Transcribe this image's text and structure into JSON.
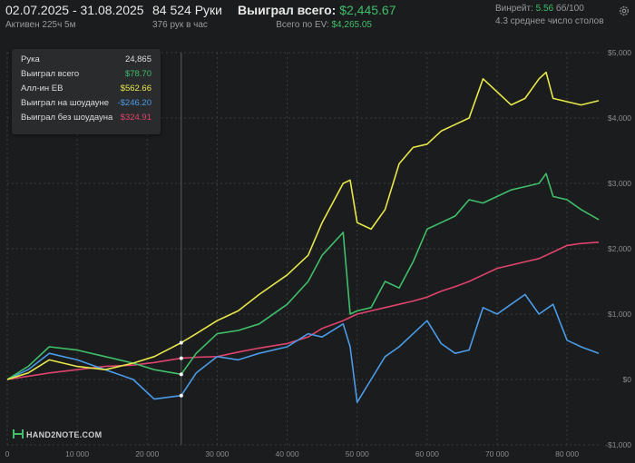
{
  "header": {
    "date_range": "02.07.2025 - 31.08.2025",
    "active_label": "Активен 225ч 5м",
    "hands": "84 524 Руки",
    "hands_per_hour": "376 рук в час",
    "won_total_label": "Выиграл всего:",
    "won_total_value": "$2,445.67",
    "ev_label": "Всего по EV:",
    "ev_value": "$4,265.05",
    "winrate_label": "Винрейт:",
    "winrate_value": "5.56",
    "winrate_suffix": "бб/100",
    "avg_tables": "4.3 среднее число столов"
  },
  "tooltip": {
    "rows": [
      {
        "label": "Рука",
        "value": "24,865",
        "color": "#dcdcdc"
      },
      {
        "label": "Выиграл всего",
        "value": "$78.70",
        "color": "#3fbf6a"
      },
      {
        "label": "Алл-ин EB",
        "value": "$562.66",
        "color": "#e6e84a"
      },
      {
        "label": "Выиграл на шоудауне",
        "value": "-$246.20",
        "color": "#4a9be8"
      },
      {
        "label": "Выиграл без шоудауна",
        "value": "$324.91",
        "color": "#e0436e"
      }
    ]
  },
  "logo": "HAND2NOTE.COM",
  "icons": {
    "settings": "gear-icon"
  },
  "colors": {
    "won_total": "#3fbf6a",
    "allin_ev": "#e6e84a",
    "showdown": "#4a9be8",
    "non_showdown": "#e0436e",
    "grid": "#3a3b3d",
    "background": "#1b1c1d"
  },
  "chart_data": {
    "type": "line",
    "x_ticks": [
      0,
      10000,
      20000,
      30000,
      40000,
      50000,
      60000,
      70000,
      80000
    ],
    "x_tick_labels": [
      "0",
      "10 000",
      "20 000",
      "30 000",
      "40 000",
      "50 000",
      "60 000",
      "70 000",
      "80 000"
    ],
    "y_ticks": [
      -1000,
      0,
      1000,
      2000,
      3000,
      4000,
      5000
    ],
    "y_tick_labels": [
      "-$1,000",
      "$0",
      "$1,000",
      "$2,000",
      "$3,000",
      "$4,000",
      "$5,000"
    ],
    "xlim": [
      0,
      84524
    ],
    "ylim": [
      -1000,
      5000
    ],
    "grid": true,
    "series": [
      {
        "key": "allin_ev",
        "color": "#e6e84a",
        "x": [
          0,
          3000,
          6000,
          10000,
          14000,
          18000,
          21000,
          24865,
          27000,
          30000,
          33000,
          36000,
          40000,
          43000,
          45000,
          48000,
          49000,
          50000,
          52000,
          54000,
          56000,
          58000,
          60000,
          62000,
          64000,
          66000,
          68000,
          70000,
          72000,
          74000,
          76000,
          77000,
          78000,
          80000,
          82000,
          84524
        ],
        "y": [
          0,
          100,
          300,
          200,
          150,
          250,
          350,
          562.66,
          700,
          900,
          1050,
          1300,
          1600,
          1900,
          2400,
          3000,
          3050,
          2400,
          2300,
          2600,
          3300,
          3550,
          3600,
          3800,
          3900,
          4000,
          4600,
          4400,
          4200,
          4300,
          4600,
          4700,
          4300,
          4250,
          4200,
          4265.05
        ]
      },
      {
        "key": "won_total",
        "color": "#3fbf6a",
        "x": [
          0,
          3000,
          6000,
          10000,
          14000,
          18000,
          21000,
          24865,
          27000,
          30000,
          33000,
          36000,
          40000,
          43000,
          45000,
          48000,
          49000,
          50000,
          52000,
          54000,
          56000,
          58000,
          60000,
          62000,
          64000,
          66000,
          68000,
          70000,
          72000,
          74000,
          76000,
          77000,
          78000,
          80000,
          82000,
          84524
        ],
        "y": [
          0,
          200,
          500,
          450,
          350,
          250,
          150,
          78.7,
          400,
          700,
          750,
          850,
          1150,
          1500,
          1900,
          2250,
          1000,
          1050,
          1100,
          1500,
          1400,
          1800,
          2300,
          2400,
          2500,
          2750,
          2700,
          2800,
          2900,
          2950,
          3000,
          3150,
          2800,
          2750,
          2600,
          2445.67
        ]
      },
      {
        "key": "non_showdown",
        "color": "#e0436e",
        "x": [
          0,
          3000,
          6000,
          10000,
          14000,
          18000,
          21000,
          24865,
          27000,
          30000,
          33000,
          36000,
          40000,
          43000,
          45000,
          48000,
          50000,
          52000,
          54000,
          56000,
          58000,
          60000,
          62000,
          64000,
          66000,
          68000,
          70000,
          72000,
          74000,
          76000,
          78000,
          80000,
          82000,
          84524
        ],
        "y": [
          0,
          50,
          100,
          150,
          200,
          220,
          260,
          324.91,
          340,
          350,
          420,
          480,
          550,
          650,
          780,
          900,
          1000,
          1050,
          1100,
          1150,
          1200,
          1260,
          1350,
          1420,
          1500,
          1600,
          1700,
          1750,
          1800,
          1850,
          1950,
          2050,
          2080,
          2100
        ]
      },
      {
        "key": "showdown",
        "color": "#4a9be8",
        "x": [
          0,
          3000,
          6000,
          10000,
          14000,
          18000,
          21000,
          24865,
          27000,
          30000,
          33000,
          36000,
          40000,
          43000,
          45000,
          48000,
          49000,
          50000,
          52000,
          54000,
          56000,
          58000,
          60000,
          62000,
          64000,
          66000,
          68000,
          70000,
          72000,
          74000,
          76000,
          78000,
          80000,
          82000,
          84524
        ],
        "y": [
          0,
          150,
          400,
          300,
          150,
          0,
          -300,
          -246.2,
          100,
          350,
          300,
          400,
          500,
          700,
          650,
          850,
          500,
          -350,
          0,
          350,
          500,
          700,
          900,
          550,
          400,
          450,
          1100,
          1000,
          1150,
          1300,
          1000,
          1150,
          600,
          500,
          400
        ]
      }
    ]
  }
}
